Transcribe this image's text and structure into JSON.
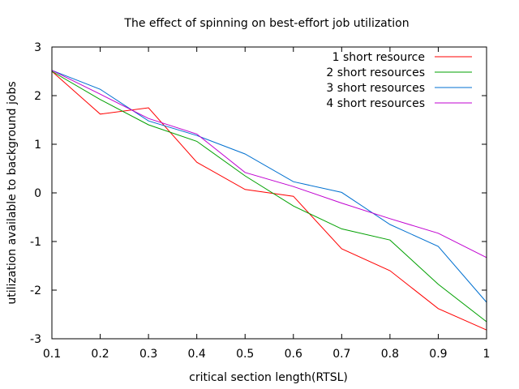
{
  "chart_data": {
    "type": "line",
    "title": "The effect of spinning on best-effort job utilization",
    "xlabel": "critical section length(RTSL)",
    "ylabel": "utilization available to background jobs",
    "xlim": [
      0.1,
      1
    ],
    "ylim": [
      -3,
      3
    ],
    "xticks": [
      "0.1",
      "0.2",
      "0.3",
      "0.4",
      "0.5",
      "0.6",
      "0.7",
      "0.8",
      "0.9",
      "1"
    ],
    "yticks": [
      "-3",
      "-2",
      "-1",
      "0",
      "1",
      "2",
      "3"
    ],
    "x": [
      0.1,
      0.2,
      0.3,
      0.4,
      0.5,
      0.6,
      0.7,
      0.8,
      0.9,
      1.0
    ],
    "grid": false,
    "legend_position": "top-right",
    "series": [
      {
        "name": "1 short resource",
        "color": "#ff0000",
        "values": [
          2.5,
          1.62,
          1.75,
          0.63,
          0.07,
          -0.07,
          -1.15,
          -1.6,
          -2.38,
          -2.82
        ]
      },
      {
        "name": "2 short resources",
        "color": "#00a000",
        "values": [
          2.5,
          1.92,
          1.4,
          1.06,
          0.35,
          -0.27,
          -0.74,
          -0.97,
          -1.88,
          -2.65
        ]
      },
      {
        "name": "3 short resources",
        "color": "#0070d0",
        "values": [
          2.52,
          2.13,
          1.48,
          1.18,
          0.8,
          0.23,
          0.01,
          -0.65,
          -1.1,
          -2.25
        ]
      },
      {
        "name": "4 short resources",
        "color": "#c000d0",
        "values": [
          2.52,
          2.03,
          1.53,
          1.21,
          0.42,
          0.13,
          -0.21,
          -0.53,
          -0.83,
          -1.33
        ]
      }
    ]
  }
}
